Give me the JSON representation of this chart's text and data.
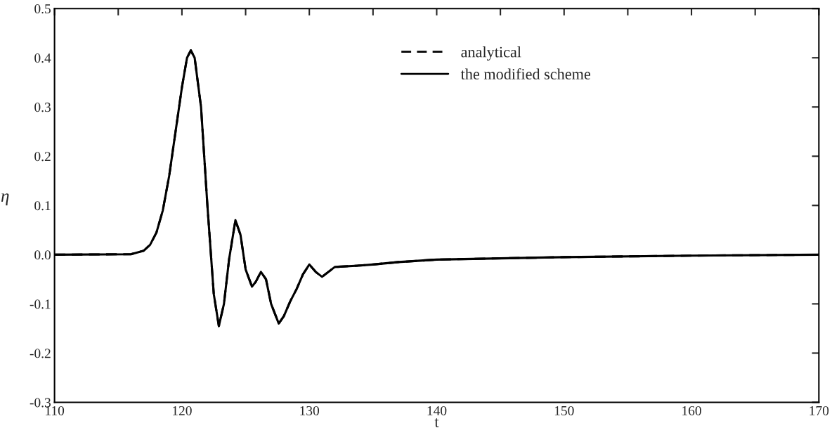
{
  "chart_data": {
    "type": "line",
    "xlabel": "t",
    "ylabel": "η",
    "x": [
      110,
      116,
      117,
      117.5,
      118,
      118.5,
      119,
      119.5,
      120,
      120.4,
      120.7,
      121,
      121.5,
      122,
      122.5,
      122.9,
      123.3,
      123.7,
      124.2,
      124.6,
      125,
      125.5,
      125.8,
      126.2,
      126.6,
      127,
      127.6,
      128,
      128.5,
      129,
      129.5,
      130,
      130.5,
      131,
      131.5,
      132,
      134,
      135,
      137,
      140,
      150,
      160,
      170
    ],
    "series": [
      {
        "name": "analytical",
        "color": "#000000",
        "line_style": "dashed",
        "values": [
          0,
          0.001,
          0.008,
          0.02,
          0.045,
          0.09,
          0.16,
          0.25,
          0.34,
          0.4,
          0.415,
          0.4,
          0.3,
          0.1,
          -0.08,
          -0.145,
          -0.1,
          -0.01,
          0.07,
          0.04,
          -0.03,
          -0.065,
          -0.055,
          -0.035,
          -0.05,
          -0.1,
          -0.14,
          -0.125,
          -0.095,
          -0.07,
          -0.04,
          -0.02,
          -0.035,
          -0.045,
          -0.035,
          -0.025,
          -0.022,
          -0.02,
          -0.015,
          -0.01,
          -0.005,
          -0.002,
          0
        ]
      },
      {
        "name": "the modified scheme",
        "color": "#000000",
        "line_style": "solid",
        "values": [
          0,
          0.001,
          0.008,
          0.02,
          0.045,
          0.09,
          0.16,
          0.25,
          0.34,
          0.4,
          0.415,
          0.4,
          0.3,
          0.1,
          -0.08,
          -0.145,
          -0.1,
          -0.01,
          0.07,
          0.04,
          -0.03,
          -0.065,
          -0.055,
          -0.035,
          -0.05,
          -0.1,
          -0.14,
          -0.125,
          -0.095,
          -0.07,
          -0.04,
          -0.02,
          -0.035,
          -0.045,
          -0.035,
          -0.025,
          -0.022,
          -0.02,
          -0.015,
          -0.01,
          -0.005,
          -0.002,
          0
        ]
      }
    ],
    "xlim": [
      110,
      170
    ],
    "xticks": [
      110,
      {
        "value": 115,
        "label": null
      },
      120,
      {
        "value": 125,
        "label": null
      },
      130,
      {
        "value": 135,
        "label": null
      },
      140,
      {
        "value": 145,
        "label": null
      },
      150,
      {
        "value": 155,
        "label": null
      },
      160,
      {
        "value": 165,
        "label": null
      },
      170
    ],
    "ylim": [
      -0.3,
      0.5
    ],
    "yticks": [
      {
        "value": -0.3,
        "label": "-0.3"
      },
      {
        "value": -0.2,
        "label": "-0.2"
      },
      {
        "value": -0.1,
        "label": "-0.1"
      },
      {
        "value": 0.0,
        "label": "0.0"
      },
      0.1,
      0.2,
      0.3,
      0.4,
      0.5
    ],
    "legend": "top right",
    "grid": false
  }
}
